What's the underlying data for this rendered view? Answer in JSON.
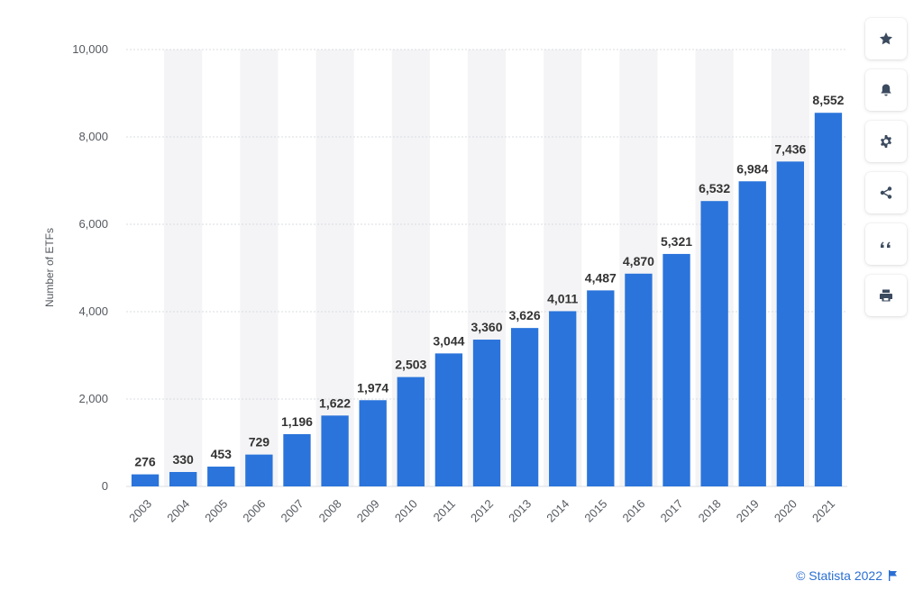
{
  "chart_data": {
    "type": "bar",
    "categories": [
      "2003",
      "2004",
      "2005",
      "2006",
      "2007",
      "2008",
      "2009",
      "2010",
      "2011",
      "2012",
      "2013",
      "2014",
      "2015",
      "2016",
      "2017",
      "2018",
      "2019",
      "2020",
      "2021"
    ],
    "values": [
      276,
      330,
      453,
      729,
      1196,
      1622,
      1974,
      2503,
      3044,
      3360,
      3626,
      4011,
      4487,
      4870,
      5321,
      6532,
      6984,
      7436,
      8552
    ],
    "value_labels": [
      "276",
      "330",
      "453",
      "729",
      "1,196",
      "1,622",
      "1,974",
      "2,503",
      "3,044",
      "3,360",
      "3,626",
      "4,011",
      "4,487",
      "4,870",
      "5,321",
      "6,532",
      "6,984",
      "7,436",
      "8,552"
    ],
    "ylabel": "Number of ETFs",
    "xlabel": "",
    "ylim": [
      0,
      10000
    ],
    "yticks": [
      0,
      2000,
      4000,
      6000,
      8000,
      10000
    ],
    "ytick_labels": [
      "0",
      "2,000",
      "4,000",
      "6,000",
      "8,000",
      "10,000"
    ],
    "bar_color": "#2a74db",
    "grid": true
  },
  "toolbar": {
    "buttons": [
      {
        "name": "favorite",
        "icon": "star-icon"
      },
      {
        "name": "notification",
        "icon": "bell-icon"
      },
      {
        "name": "settings",
        "icon": "gear-icon"
      },
      {
        "name": "share",
        "icon": "share-icon"
      },
      {
        "name": "cite",
        "icon": "quote-icon"
      },
      {
        "name": "print",
        "icon": "printer-icon"
      }
    ]
  },
  "footer": {
    "credit": "© Statista 2022",
    "flag_icon": "flag-icon"
  }
}
